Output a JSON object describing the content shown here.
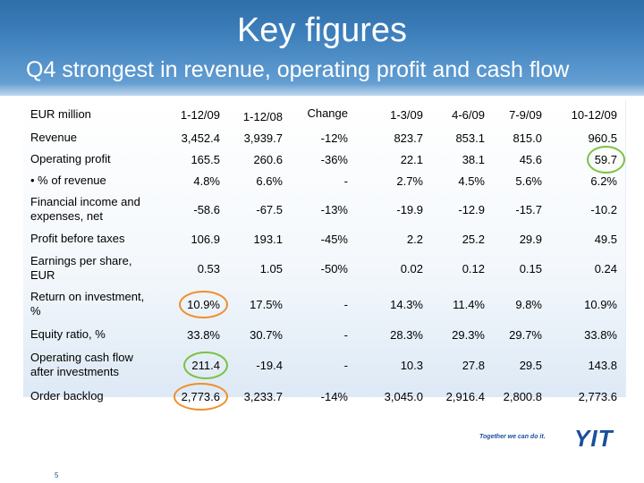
{
  "title": "Key figures",
  "subtitle": "Q4 strongest in revenue, operating profit and cash flow",
  "table": {
    "unit_label": "EUR million",
    "columns": [
      "1-12/09",
      "1-12/08",
      "Change",
      "1-3/09",
      "4-6/09",
      "7-9/09",
      "10-12/09"
    ],
    "rows": [
      {
        "label": "Revenue",
        "values": [
          "3,452.4",
          "3,939.7",
          "-12%",
          "823.7",
          "853.1",
          "815.0",
          "960.5"
        ]
      },
      {
        "label": "Operating profit",
        "values": [
          "165.5",
          "260.6",
          "-36%",
          "22.1",
          "38.1",
          "45.6",
          "59.7"
        ]
      },
      {
        "label": "• % of revenue",
        "values": [
          "4.8%",
          "6.6%",
          "-",
          "2.7%",
          "4.5%",
          "5.6%",
          "6.2%"
        ]
      },
      {
        "label": "Financial income and expenses, net",
        "values": [
          "-58.6",
          "-67.5",
          "-13%",
          "-19.9",
          "-12.9",
          "-15.7",
          "-10.2"
        ]
      },
      {
        "label": "Profit before taxes",
        "values": [
          "106.9",
          "193.1",
          "-45%",
          "2.2",
          "25.2",
          "29.9",
          "49.5"
        ]
      },
      {
        "label": "Earnings per share, EUR",
        "values": [
          "0.53",
          "1.05",
          "-50%",
          "0.02",
          "0.12",
          "0.15",
          "0.24"
        ]
      },
      {
        "label": "Return on investment, %",
        "values": [
          "10.9%",
          "17.5%",
          "-",
          "14.3%",
          "11.4%",
          "9.8%",
          "10.9%"
        ]
      },
      {
        "label": "Equity ratio, %",
        "values": [
          "33.8%",
          "30.7%",
          "-",
          "28.3%",
          "29.3%",
          "29.7%",
          "33.8%"
        ]
      },
      {
        "label": "Operating cash flow after investments",
        "values": [
          "211.4",
          "-19.4",
          "-",
          "10.3",
          "27.8",
          "29.5",
          "143.8"
        ]
      },
      {
        "label": "Order backlog",
        "values": [
          "2,773.6",
          "3,233.7",
          "-14%",
          "3,045.0",
          "2,916.4",
          "2,800.8",
          "2,773.6"
        ]
      }
    ],
    "highlights": {
      "orange_color": "#ee8f2a",
      "green_color": "#7cc242"
    }
  },
  "logo": {
    "tagline": "Together we can do it.",
    "brand": "YIT"
  },
  "page_number": "5"
}
